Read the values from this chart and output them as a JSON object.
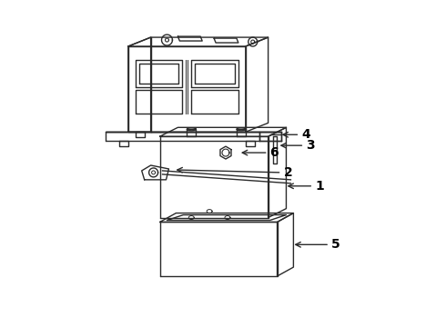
{
  "background_color": "#ffffff",
  "line_color": "#2a2a2a",
  "line_width": 1.0,
  "label_color": "#000000",
  "parts": [
    {
      "id": "1"
    },
    {
      "id": "2"
    },
    {
      "id": "3"
    },
    {
      "id": "4"
    },
    {
      "id": "5"
    },
    {
      "id": "6"
    }
  ]
}
